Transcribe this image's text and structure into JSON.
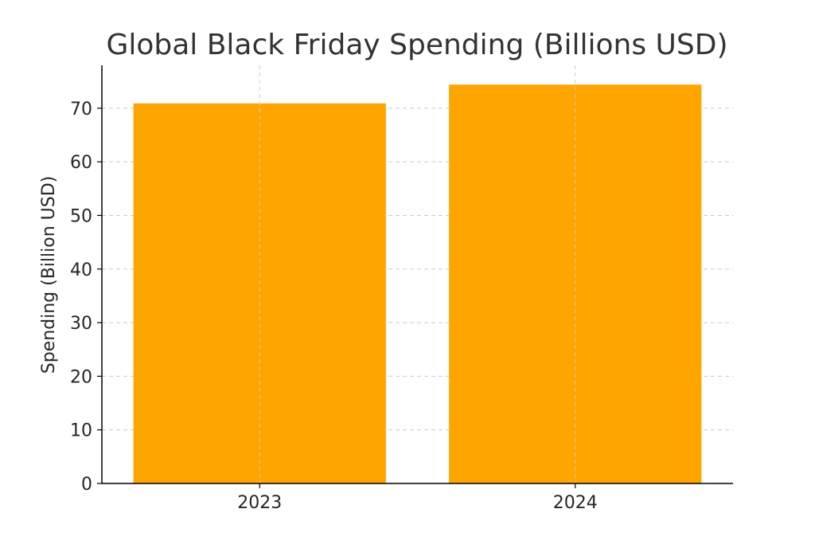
{
  "chart_data": {
    "type": "bar",
    "title": "Global Black Friday Spending (Billions USD)",
    "xlabel": "",
    "ylabel": "Spending (Billion USD)",
    "categories": [
      "2023",
      "2024"
    ],
    "values": [
      70.9,
      74.4
    ],
    "ylim": [
      0,
      78
    ],
    "yticks": [
      0,
      10,
      20,
      30,
      40,
      50,
      60,
      70
    ],
    "grid": true,
    "bar_color": "#FFA500"
  }
}
